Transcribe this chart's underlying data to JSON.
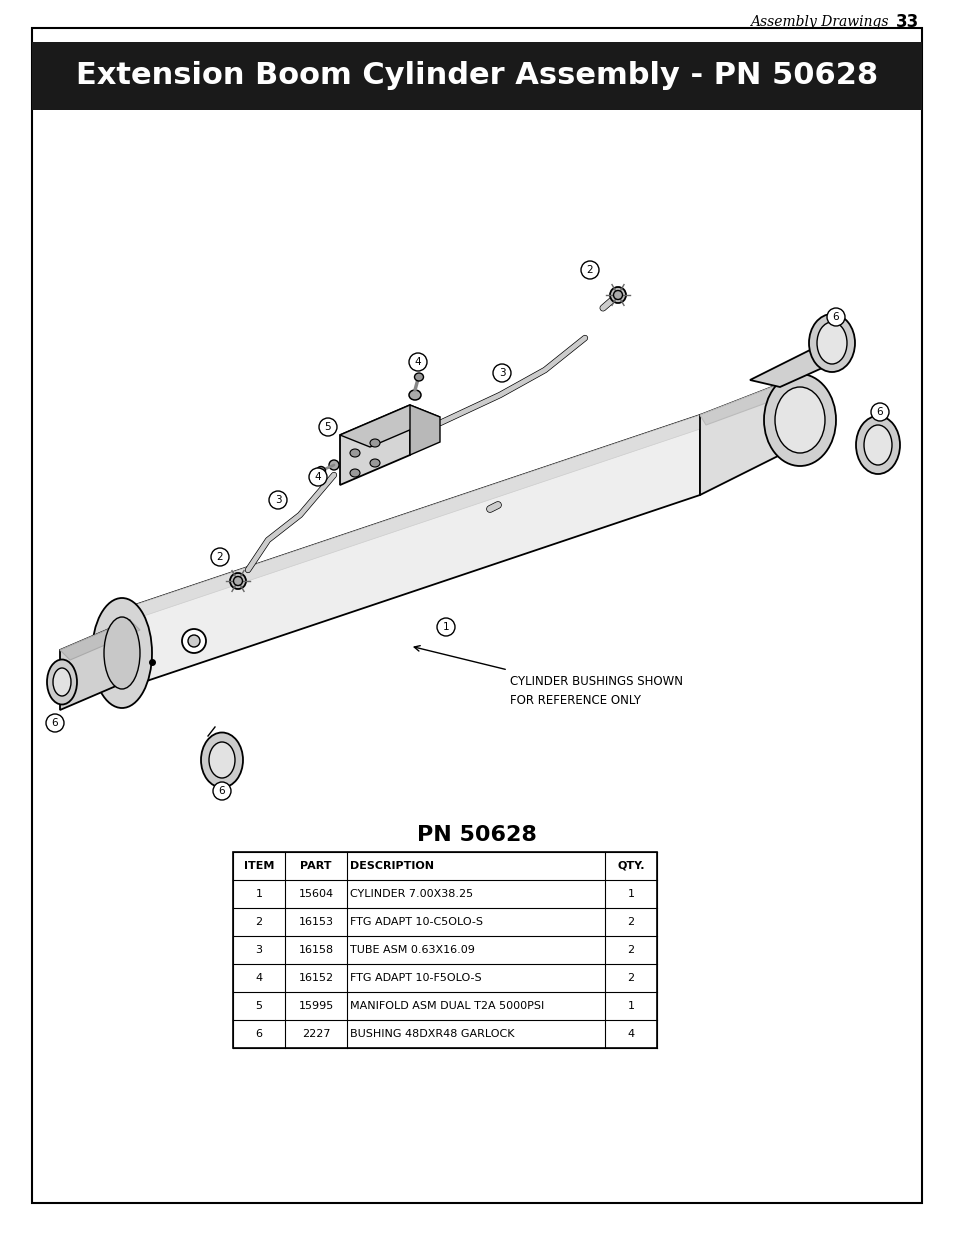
{
  "page_bg": "#ffffff",
  "outer_border_color": "#000000",
  "header_bg": "#1a1a1a",
  "header_text": "Extension Boom Cylinder Assembly - PN 50628",
  "header_text_color": "#ffffff",
  "header_font_size": 22,
  "top_right_text": "Assembly Drawings",
  "top_right_number": "33",
  "table_title": "PN 50628",
  "table_columns": [
    "ITEM",
    "PART",
    "DESCRIPTION",
    "QTY."
  ],
  "table_rows": [
    [
      "1",
      "15604",
      "CYLINDER 7.00X38.25",
      "1"
    ],
    [
      "2",
      "16153",
      "FTG ADAPT 10-C5OLO-S",
      "2"
    ],
    [
      "3",
      "16158",
      "TUBE ASM 0.63X16.09",
      "2"
    ],
    [
      "4",
      "16152",
      "FTG ADAPT 10-F5OLO-S",
      "2"
    ],
    [
      "5",
      "15995",
      "MANIFOLD ASM DUAL T2A 5000PSI",
      "1"
    ],
    [
      "6",
      "2227",
      "BUSHING 48DXR48 GARLOCK",
      "4"
    ]
  ],
  "annotation_text": "CYLINDER BUSHINGS SHOWN\nFOR REFERENCE ONLY"
}
